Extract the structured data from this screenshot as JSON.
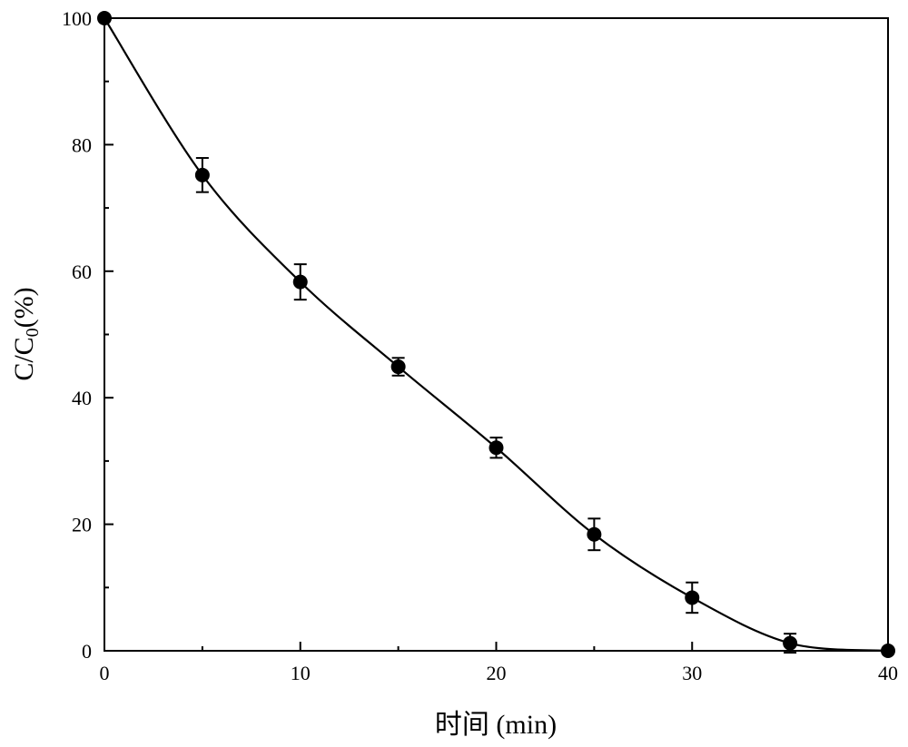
{
  "chart_data": {
    "type": "line",
    "title": "",
    "xlabel": "时间 (min)",
    "ylabel_main": "C/C",
    "ylabel_sub": "0",
    "ylabel_tail": "(%)",
    "xlim": [
      0,
      40
    ],
    "ylim": [
      0,
      100
    ],
    "xticks": [
      0,
      10,
      20,
      30,
      40
    ],
    "yticks": [
      0,
      20,
      40,
      60,
      80,
      100
    ],
    "grid": false,
    "legend": "none",
    "line_color": "#000000",
    "marker": "filled-circle",
    "series": [
      {
        "x": [
          0,
          5,
          10,
          15,
          20,
          25,
          30,
          35,
          40
        ],
        "y": [
          100,
          75.2,
          58.3,
          44.9,
          32.1,
          18.4,
          8.4,
          1.2,
          0
        ],
        "yerr": [
          0,
          2.7,
          2.8,
          1.4,
          1.6,
          2.5,
          2.4,
          1.5,
          0
        ]
      }
    ]
  }
}
